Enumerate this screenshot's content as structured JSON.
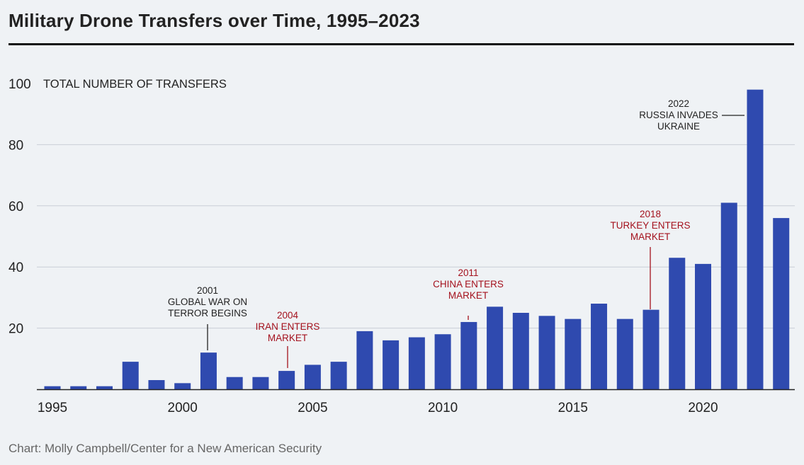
{
  "title": "Military Drone Transfers over Time, 1995–2023",
  "source": "Chart: Molly Campbell/Center for a New American Security",
  "colors": {
    "bar": "#2f4aaf",
    "grid": "#c9ced6",
    "axis": "#222222",
    "annotation_dark": "#222222",
    "annotation_red": "#a4111d"
  },
  "chart_data": {
    "type": "bar",
    "title": "Military Drone Transfers over Time, 1995–2023",
    "ylabel": "TOTAL NUMBER OF TRANSFERS",
    "xlabel": "",
    "ylim": [
      0,
      100
    ],
    "yticks": [
      20,
      40,
      60,
      80,
      100
    ],
    "xticks": [
      1995,
      2000,
      2005,
      2010,
      2015,
      2020
    ],
    "grid": true,
    "categories": [
      1995,
      1996,
      1997,
      1998,
      1999,
      2000,
      2001,
      2002,
      2003,
      2004,
      2005,
      2006,
      2007,
      2008,
      2009,
      2010,
      2011,
      2012,
      2013,
      2014,
      2015,
      2016,
      2017,
      2018,
      2019,
      2020,
      2021,
      2022,
      2023
    ],
    "values": [
      1,
      1,
      1,
      9,
      3,
      2,
      12,
      4,
      4,
      6,
      8,
      9,
      19,
      16,
      17,
      18,
      22,
      27,
      25,
      24,
      23,
      28,
      23,
      26,
      43,
      41,
      61,
      98,
      56
    ],
    "annotations": [
      {
        "id": "2001",
        "year": 2001,
        "lines": [
          "2001",
          "GLOBAL WAR ON",
          "TERROR BEGINS"
        ],
        "color": "dark"
      },
      {
        "id": "2004",
        "year": 2004,
        "lines": [
          "2004",
          "IRAN ENTERS",
          "MARKET"
        ],
        "color": "red"
      },
      {
        "id": "2011",
        "year": 2011,
        "lines": [
          "2011",
          "CHINA ENTERS",
          "MARKET"
        ],
        "color": "red"
      },
      {
        "id": "2018",
        "year": 2018,
        "lines": [
          "2018",
          "TURKEY ENTERS",
          "MARKET"
        ],
        "color": "red"
      },
      {
        "id": "2022",
        "year": 2022,
        "lines": [
          "2022",
          "RUSSIA INVADES",
          "UKRAINE"
        ],
        "color": "dark"
      }
    ]
  }
}
